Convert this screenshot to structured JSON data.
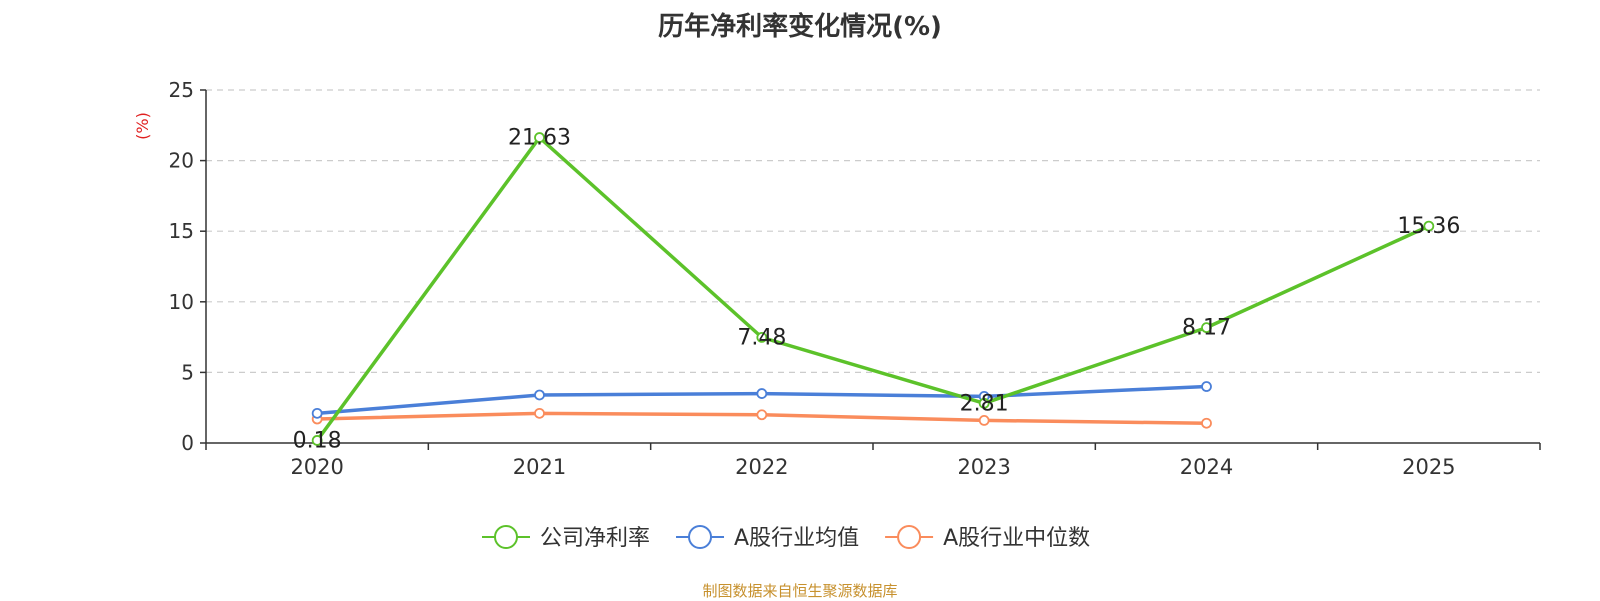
{
  "chart_data": {
    "type": "line",
    "title": "历年净利率变化情况(%)",
    "ylabel": "(%)",
    "xlabel": "",
    "categories": [
      "2020",
      "2021",
      "2022",
      "2023",
      "2024",
      "2025"
    ],
    "ylim": [
      0,
      25
    ],
    "yticks": [
      0,
      5,
      10,
      15,
      20,
      25
    ],
    "grid": "horizontal-dashed",
    "legend_position": "bottom-center",
    "series": [
      {
        "name": "公司净利率",
        "color": "#5cc22a",
        "values": [
          0.18,
          21.63,
          7.48,
          2.81,
          8.17,
          15.36
        ],
        "labels": [
          "0.18",
          "21.63",
          "7.48",
          "2.81",
          "8.17",
          "15.36"
        ]
      },
      {
        "name": "A股行业均值",
        "color": "#4a7fd8",
        "values": [
          2.1,
          3.4,
          3.5,
          3.3,
          4.0,
          null
        ]
      },
      {
        "name": "A股行业中位数",
        "color": "#fa8c5c",
        "values": [
          1.7,
          2.1,
          2.0,
          1.6,
          1.4,
          null
        ]
      }
    ],
    "source_note": "制图数据来自恒生聚源数据库"
  }
}
